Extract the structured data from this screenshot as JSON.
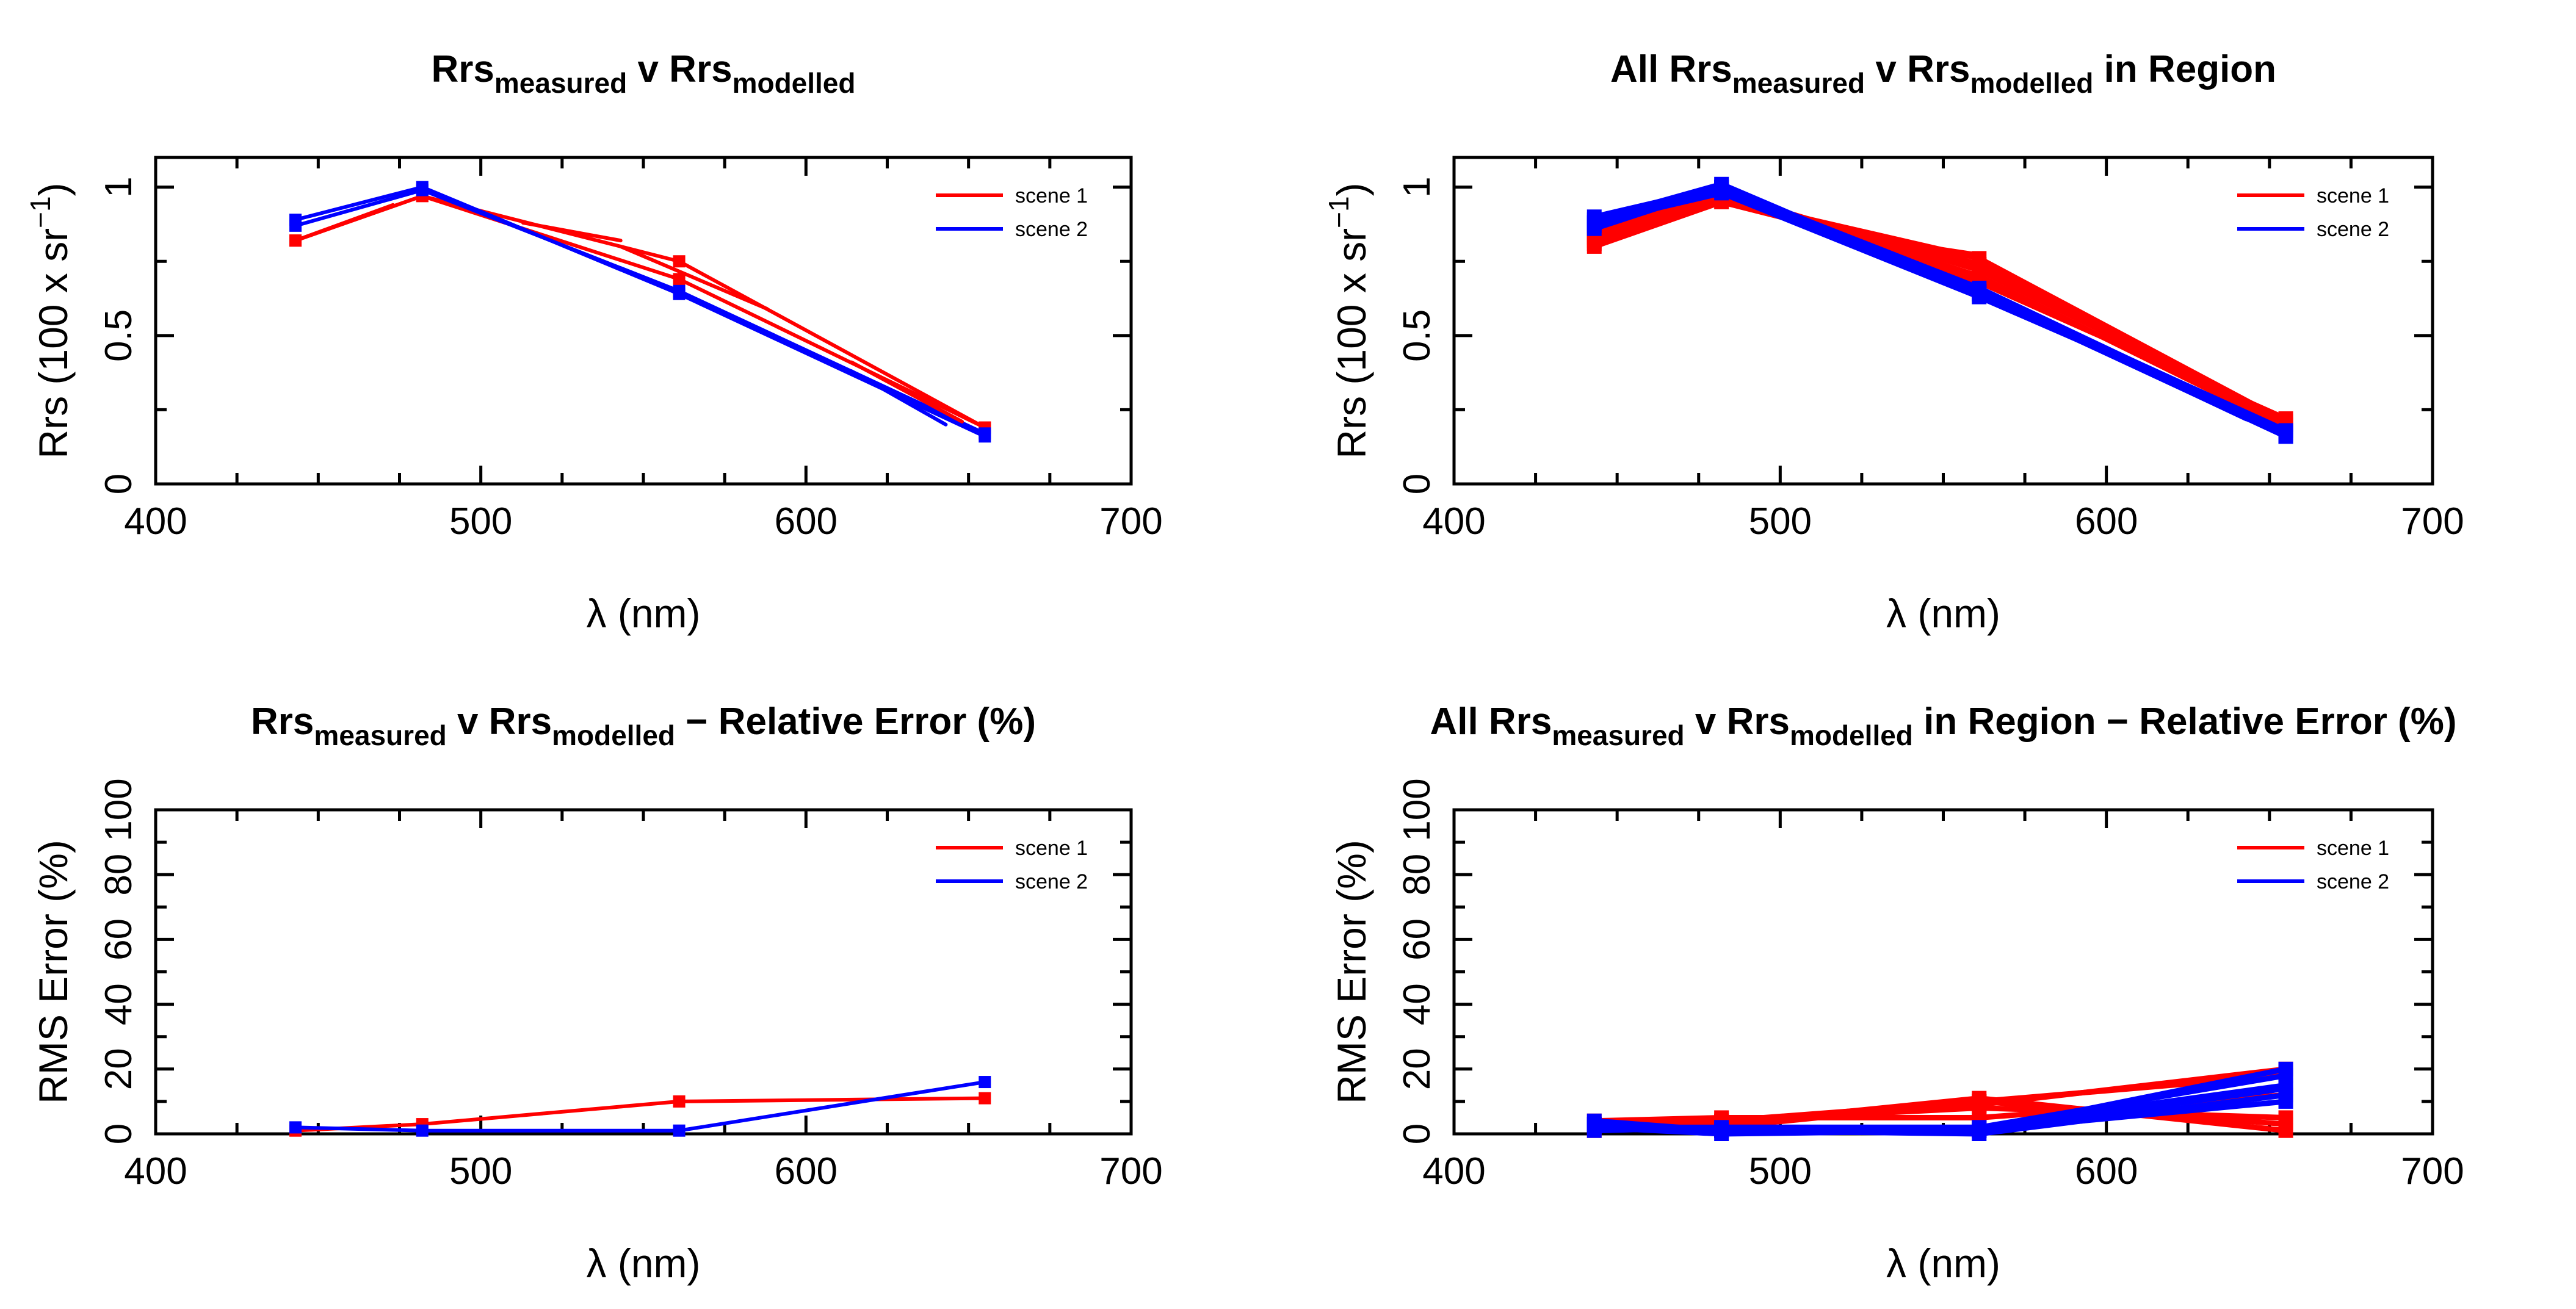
{
  "chart_data": [
    {
      "type": "line",
      "title": {
        "base1": "Rrs",
        "sub1": "measured",
        "mid": " v ",
        "base2": "Rrs",
        "sub2": "modelled",
        "tail": ""
      },
      "xlabel": "λ (nm)",
      "ylabel": {
        "main": "Rrs (100 x sr",
        "sup": "−1",
        "close": ")"
      },
      "xlim": [
        400,
        700
      ],
      "ylim": [
        0,
        1.1
      ],
      "xticks": [
        400,
        500,
        600,
        700
      ],
      "yticks": [
        0,
        0.5,
        1
      ],
      "ytick_labels": [
        "0",
        "0.5",
        "1"
      ],
      "legend": [
        "scene 1",
        "scene 2"
      ],
      "legend_position": "top-right",
      "colors": {
        "scene 1": "#ff0000",
        "scene 2": "#0000ff"
      },
      "series": [
        {
          "name": "scene 1",
          "x": [
            443,
            482,
            561,
            655
          ],
          "values": [
            0.82,
            0.97,
            0.69,
            0.19
          ]
        },
        {
          "name": "scene 1",
          "x": [
            443,
            482,
            561,
            655
          ],
          "values": [
            0.82,
            0.97,
            0.75,
            0.19
          ]
        },
        {
          "name": "scene 2",
          "x": [
            443,
            482,
            561,
            655
          ],
          "values": [
            0.89,
            1.0,
            0.64,
            0.16
          ]
        },
        {
          "name": "scene 2",
          "x": [
            443,
            482,
            561,
            655
          ],
          "values": [
            0.87,
            0.99,
            0.65,
            0.17
          ]
        }
      ],
      "fragments": [
        {
          "name": "scene 1",
          "x": [
            443,
            473
          ],
          "values": [
            0.82,
            0.94
          ]
        },
        {
          "name": "scene 1",
          "x": [
            513,
            543
          ],
          "values": [
            0.88,
            0.82
          ]
        },
        {
          "name": "scene 1",
          "x": [
            543,
            588
          ],
          "values": [
            0.8,
            0.59
          ]
        },
        {
          "name": "scene 1",
          "x": [
            614,
            648
          ],
          "values": [
            0.41,
            0.21
          ]
        },
        {
          "name": "scene 2",
          "x": [
            614,
            643
          ],
          "values": [
            0.38,
            0.2
          ]
        }
      ]
    },
    {
      "type": "line",
      "title": {
        "base1": "All Rrs",
        "sub1": "measured",
        "mid": " v ",
        "base2": "Rrs",
        "sub2": "modelled",
        "tail": " in Region"
      },
      "xlabel": "λ (nm)",
      "ylabel": {
        "main": "Rrs (100 x sr",
        "sup": "−1",
        "close": ")"
      },
      "xlim": [
        400,
        700
      ],
      "ylim": [
        0,
        1.1
      ],
      "xticks": [
        400,
        500,
        600,
        700
      ],
      "yticks": [
        0,
        0.5,
        1
      ],
      "ytick_labels": [
        "0",
        "0.5",
        "1"
      ],
      "legend": [
        "scene 1",
        "scene 2"
      ],
      "legend_position": "top-right",
      "colors": {
        "scene 1": "#ff0000",
        "scene 2": "#0000ff"
      },
      "series": [
        {
          "name": "scene 1",
          "x": [
            443,
            482,
            561,
            655
          ],
          "values": [
            0.81,
            0.96,
            0.76,
            0.21
          ]
        },
        {
          "name": "scene 1",
          "x": [
            443,
            482,
            561,
            655
          ],
          "values": [
            0.83,
            0.97,
            0.74,
            0.2
          ]
        },
        {
          "name": "scene 1",
          "x": [
            443,
            482,
            561,
            655
          ],
          "values": [
            0.82,
            0.98,
            0.72,
            0.21
          ]
        },
        {
          "name": "scene 1",
          "x": [
            443,
            482,
            561,
            655
          ],
          "values": [
            0.84,
            0.97,
            0.7,
            0.19
          ]
        },
        {
          "name": "scene 1",
          "x": [
            443,
            482,
            561,
            655
          ],
          "values": [
            0.85,
            0.99,
            0.68,
            0.22
          ]
        },
        {
          "name": "scene 1",
          "x": [
            443,
            482,
            561,
            655
          ],
          "values": [
            0.8,
            0.95,
            0.73,
            0.2
          ]
        },
        {
          "name": "scene 2",
          "x": [
            443,
            482,
            561,
            655
          ],
          "values": [
            0.89,
            1.01,
            0.64,
            0.16
          ]
        },
        {
          "name": "scene 2",
          "x": [
            443,
            482,
            561,
            655
          ],
          "values": [
            0.88,
            1.0,
            0.65,
            0.17
          ]
        },
        {
          "name": "scene 2",
          "x": [
            443,
            482,
            561,
            655
          ],
          "values": [
            0.87,
            0.99,
            0.65,
            0.18
          ]
        },
        {
          "name": "scene 2",
          "x": [
            443,
            482,
            561,
            655
          ],
          "values": [
            0.86,
            1.0,
            0.66,
            0.17
          ]
        },
        {
          "name": "scene 2",
          "x": [
            443,
            482,
            561,
            655
          ],
          "values": [
            0.9,
            1.0,
            0.64,
            0.16
          ]
        },
        {
          "name": "scene 2",
          "x": [
            443,
            482,
            561,
            655
          ],
          "values": [
            0.88,
            0.98,
            0.63,
            0.18
          ]
        }
      ],
      "fragments": [
        {
          "name": "scene 1",
          "x": [
            543,
            561
          ],
          "values": [
            0.8,
            0.77
          ]
        },
        {
          "name": "scene 1",
          "x": [
            561,
            588
          ],
          "values": [
            0.76,
            0.59
          ]
        },
        {
          "name": "scene 2",
          "x": [
            614,
            643
          ],
          "values": [
            0.37,
            0.22
          ]
        }
      ]
    },
    {
      "type": "line",
      "title": {
        "base1": "Rrs",
        "sub1": "measured",
        "mid": " v ",
        "base2": "Rrs",
        "sub2": "modelled",
        "tail": " − Relative Error (%)"
      },
      "xlabel": "λ (nm)",
      "ylabel": {
        "main": "RMS Error (%)",
        "sup": "",
        "close": ""
      },
      "xlim": [
        400,
        700
      ],
      "ylim": [
        0,
        100
      ],
      "xticks": [
        400,
        500,
        600,
        700
      ],
      "yticks": [
        0,
        20,
        40,
        60,
        80,
        100
      ],
      "ytick_labels": [
        "0",
        "20",
        "40",
        "60",
        "80",
        "100"
      ],
      "legend": [
        "scene 1",
        "scene 2"
      ],
      "legend_position": "top-right",
      "colors": {
        "scene 1": "#ff0000",
        "scene 2": "#0000ff"
      },
      "series": [
        {
          "name": "scene 1",
          "x": [
            443,
            482,
            561,
            655
          ],
          "values": [
            1,
            3,
            10,
            11
          ]
        },
        {
          "name": "scene 2",
          "x": [
            443,
            482,
            561,
            655
          ],
          "values": [
            2,
            1,
            1,
            16
          ]
        }
      ],
      "fragments": []
    },
    {
      "type": "line",
      "title": {
        "base1": "All Rrs",
        "sub1": "measured",
        "mid": " v ",
        "base2": "Rrs",
        "sub2": "modelled",
        "tail": " in Region − Relative Error (%)"
      },
      "xlabel": "λ (nm)",
      "ylabel": {
        "main": "RMS Error (%)",
        "sup": "",
        "close": ""
      },
      "xlim": [
        400,
        700
      ],
      "ylim": [
        0,
        100
      ],
      "xticks": [
        400,
        500,
        600,
        700
      ],
      "yticks": [
        0,
        20,
        40,
        60,
        80,
        100
      ],
      "ytick_labels": [
        "0",
        "20",
        "40",
        "60",
        "80",
        "100"
      ],
      "legend": [
        "scene 1",
        "scene 2"
      ],
      "legend_position": "top-right",
      "colors": {
        "scene 1": "#ff0000",
        "scene 2": "#0000ff"
      },
      "series": [
        {
          "name": "scene 1",
          "x": [
            443,
            482,
            561,
            655
          ],
          "values": [
            2,
            4,
            10,
            18
          ]
        },
        {
          "name": "scene 1",
          "x": [
            443,
            482,
            561,
            655
          ],
          "values": [
            3,
            3,
            11,
            1
          ]
        },
        {
          "name": "scene 1",
          "x": [
            443,
            482,
            561,
            655
          ],
          "values": [
            1,
            4,
            8,
            5
          ]
        },
        {
          "name": "scene 1",
          "x": [
            443,
            482,
            561,
            655
          ],
          "values": [
            2,
            3,
            9,
            20
          ]
        },
        {
          "name": "scene 1",
          "x": [
            443,
            482,
            561,
            655
          ],
          "values": [
            4,
            5,
            5,
            12
          ]
        },
        {
          "name": "scene 1",
          "x": [
            443,
            482,
            561,
            655
          ],
          "values": [
            3,
            2,
            10,
            3
          ]
        },
        {
          "name": "scene 2",
          "x": [
            443,
            482,
            561,
            655
          ],
          "values": [
            3,
            1,
            1,
            20
          ]
        },
        {
          "name": "scene 2",
          "x": [
            443,
            482,
            561,
            655
          ],
          "values": [
            2,
            2,
            2,
            15
          ]
        },
        {
          "name": "scene 2",
          "x": [
            443,
            482,
            561,
            655
          ],
          "values": [
            4,
            1,
            1,
            10
          ]
        },
        {
          "name": "scene 2",
          "x": [
            443,
            482,
            561,
            655
          ],
          "values": [
            1,
            2,
            2,
            18
          ]
        },
        {
          "name": "scene 2",
          "x": [
            443,
            482,
            561,
            655
          ],
          "values": [
            3,
            1,
            0,
            12
          ]
        },
        {
          "name": "scene 2",
          "x": [
            443,
            482,
            561,
            655
          ],
          "values": [
            2,
            0,
            1,
            14
          ]
        }
      ],
      "fragments": []
    }
  ]
}
